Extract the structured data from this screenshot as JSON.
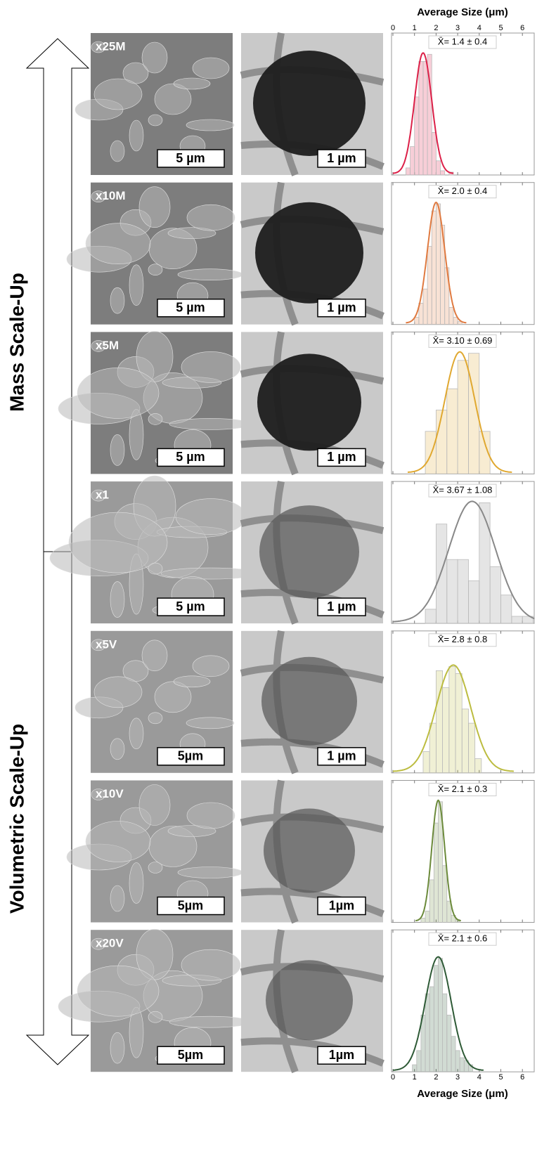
{
  "labels": {
    "mass": "Mass Scale-Up",
    "volumetric": "Volumetric Scale-Up"
  },
  "chart_data": {
    "type": "histogram",
    "xlabel": "Average Size (μm)",
    "xlim": [
      0,
      6.55
    ],
    "xticks": [
      0,
      1,
      2,
      3,
      4,
      5,
      6
    ],
    "panels": [
      {
        "sample": "x25M",
        "sem_scale": "5 µm",
        "tem_scale": "1 µm",
        "mean_label": "X̄= 1.4 ± 0.4",
        "mean": 1.4,
        "sd": 0.4,
        "color": "#dc2048",
        "bins": [
          0.6,
          0.8,
          1.0,
          1.2,
          1.4,
          1.6,
          1.8,
          2.0,
          2.2,
          2.4,
          2.6,
          2.8
        ],
        "counts": [
          5,
          20,
          55,
          80,
          80,
          85,
          30,
          10,
          3,
          0,
          2
        ]
      },
      {
        "sample": "x10M",
        "sem_scale": "5 µm",
        "tem_scale": "1 µm",
        "mean_label": "X̄= 2.0 ± 0.4",
        "mean": 2.0,
        "sd": 0.4,
        "color": "#e07a40",
        "bins": [
          1.0,
          1.2,
          1.4,
          1.6,
          1.8,
          2.0,
          2.2,
          2.4,
          2.6,
          2.8,
          3.0,
          3.2
        ],
        "counts": [
          5,
          15,
          25,
          55,
          80,
          85,
          70,
          40,
          12,
          5,
          2
        ]
      },
      {
        "sample": "x5M",
        "sem_scale": "5 µm",
        "tem_scale": "1 µm",
        "mean_label": "X̄= 3.10 ± 0.69",
        "mean": 3.1,
        "sd": 0.69,
        "color": "#e0a830",
        "bins": [
          1.5,
          2.0,
          2.5,
          3.0,
          3.5,
          4.0,
          4.5
        ],
        "counts": [
          30,
          45,
          60,
          80,
          85,
          30
        ]
      },
      {
        "sample": "x1",
        "sem_scale": "5 µm",
        "tem_scale": "1 µm",
        "mean_label": "X̄= 3.67 ± 1.08",
        "mean": 3.67,
        "sd": 1.08,
        "color": "#888888",
        "bins": [
          1.5,
          2.0,
          2.5,
          3.0,
          3.5,
          4.0,
          4.5,
          5.0,
          5.5,
          6.0,
          6.5
        ],
        "counts": [
          10,
          70,
          45,
          45,
          30,
          85,
          40,
          20,
          5,
          5
        ]
      },
      {
        "sample": "x5V",
        "sem_scale": "5µm",
        "tem_scale": "1 µm",
        "mean_label": "X̄= 2.8 ± 0.8",
        "mean": 2.8,
        "sd": 0.8,
        "color": "#bcbc40",
        "bins": [
          1.4,
          1.7,
          2.0,
          2.3,
          2.6,
          2.9,
          3.2,
          3.5,
          3.8,
          4.1
        ],
        "counts": [
          15,
          35,
          72,
          60,
          75,
          70,
          45,
          35,
          10
        ]
      },
      {
        "sample": "x10V",
        "sem_scale": "5µm",
        "tem_scale": "1µm",
        "mean_label": "X̄= 2.1 ± 0.3",
        "mean": 2.1,
        "sd": 0.3,
        "color": "#6b8a3a",
        "bins": [
          1.3,
          1.5,
          1.7,
          1.9,
          2.1,
          2.3,
          2.5,
          2.7,
          2.9,
          3.1
        ],
        "counts": [
          3,
          8,
          30,
          70,
          85,
          40,
          15,
          5,
          2
        ]
      },
      {
        "sample": "x20V",
        "sem_scale": "5µm",
        "tem_scale": "1µm",
        "mean_label": "X̄= 2.1 ± 0.6",
        "mean": 2.1,
        "sd": 0.6,
        "color": "#2e5a36",
        "bins": [
          0.9,
          1.1,
          1.3,
          1.5,
          1.7,
          1.9,
          2.1,
          2.3,
          2.5,
          2.7,
          2.9,
          3.1,
          3.3,
          3.5,
          3.7
        ],
        "counts": [
          5,
          15,
          40,
          55,
          60,
          75,
          80,
          55,
          40,
          25,
          15,
          10,
          8,
          5
        ]
      }
    ]
  }
}
